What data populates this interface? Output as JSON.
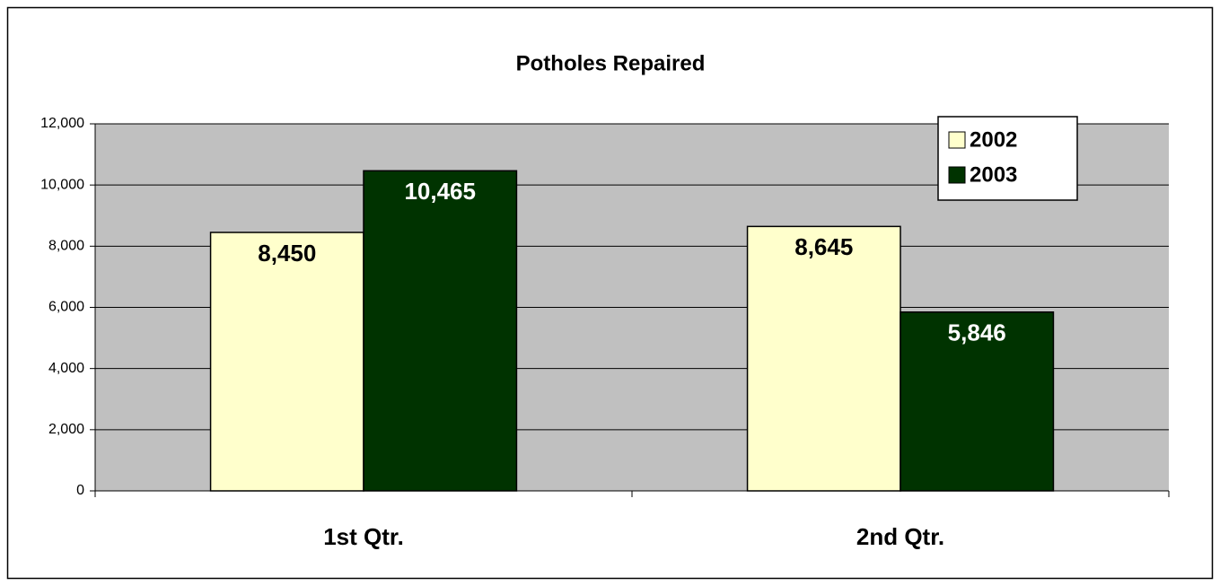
{
  "chart_data": {
    "type": "bar",
    "title": "Potholes Repaired",
    "categories": [
      "1st Qtr.",
      "2nd Qtr."
    ],
    "series": [
      {
        "name": "2002",
        "color": "#ffffcc",
        "values": [
          8450,
          8645
        ],
        "value_labels": [
          "8,450",
          "8,645"
        ]
      },
      {
        "name": "2003",
        "color": "#003300",
        "values": [
          10465,
          5846
        ],
        "value_labels": [
          "10,465",
          "5,846"
        ]
      }
    ],
    "ylim": [
      0,
      12000
    ],
    "yticks": [
      0,
      {
        "value": 2000,
        "label": "2,000"
      },
      {
        "value": 4000,
        "label": "4,000"
      },
      {
        "value": 6000,
        "label": "6,000"
      },
      {
        "value": 8000,
        "label": "8,000"
      },
      {
        "value": 10000,
        "label": "10,000"
      },
      {
        "value": 12000,
        "label": "12,000"
      }
    ],
    "grid": true,
    "legend": "upper right",
    "plot_background": "#c0c0c0"
  }
}
